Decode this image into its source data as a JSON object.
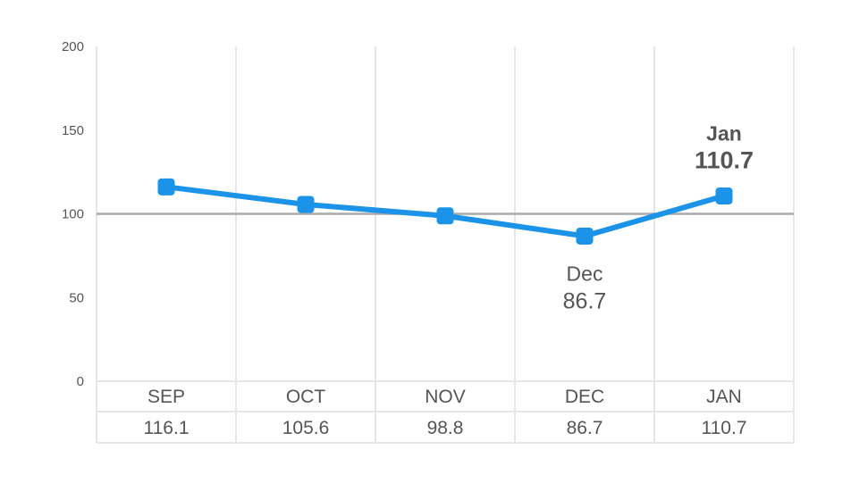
{
  "chart_data": {
    "type": "line",
    "categories": [
      "SEP",
      "OCT",
      "NOV",
      "DEC",
      "JAN"
    ],
    "values": [
      116.1,
      105.6,
      98.8,
      86.7,
      110.7
    ],
    "table_values": [
      "116.1",
      "105.6",
      "98.8",
      "86.7",
      "110.7"
    ],
    "ylim": [
      0,
      200
    ],
    "yticks": [
      0,
      50,
      100,
      150,
      200
    ],
    "reference_line": 100,
    "grid": true,
    "annotations": [
      {
        "month": "Dec",
        "value": "86.7",
        "index": 3,
        "placement": "below",
        "highlight": false
      },
      {
        "month": "Jan",
        "value": "110.7",
        "index": 4,
        "placement": "above",
        "highlight": true
      }
    ],
    "colors": {
      "line": "#1a93e8",
      "reference": "#aaaaaa",
      "grid": "#e6e6e6",
      "text": "#555555",
      "highlight": "#1a93e8"
    }
  }
}
